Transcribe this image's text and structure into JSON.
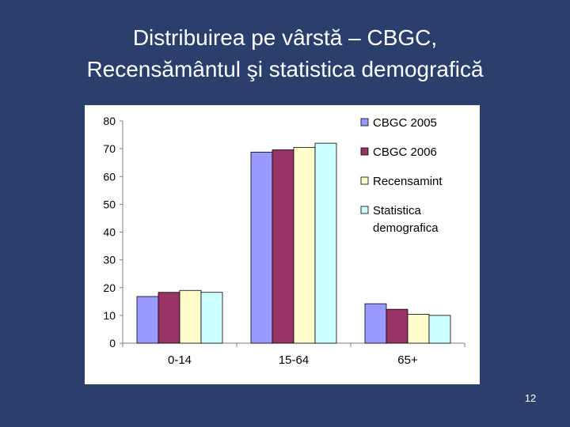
{
  "slide": {
    "title_line1": "Distribuirea pe vârstă – CBGC,",
    "title_line2": "Recensământul şi statistica demografică",
    "page_number": "12"
  },
  "chart_data": {
    "type": "bar",
    "categories": [
      "0-14",
      "15-64",
      "65+"
    ],
    "series": [
      {
        "name": "CBGC 2005",
        "color": "#9999ff",
        "values": [
          16.8,
          68.8,
          14.2
        ]
      },
      {
        "name": "CBGC 2006",
        "color": "#993366",
        "values": [
          18.3,
          69.6,
          12.2
        ]
      },
      {
        "name": "Recensamint",
        "color": "#ffffcc",
        "values": [
          19.0,
          70.5,
          10.4
        ]
      },
      {
        "name": "Statistica demografica",
        "color": "#ccffff",
        "values": [
          18.3,
          72.0,
          10.0
        ]
      }
    ],
    "legend_lines": [
      [
        "CBGC 2005"
      ],
      [
        "CBGC 2006"
      ],
      [
        "Recensamint"
      ],
      [
        "Statistica",
        "demografica"
      ]
    ],
    "yticks": [
      0,
      10,
      20,
      30,
      40,
      50,
      60,
      70,
      80
    ],
    "ylim": [
      0,
      80
    ],
    "grid": false,
    "legend_position": "top-right",
    "title": "",
    "xlabel": "",
    "ylabel": ""
  }
}
